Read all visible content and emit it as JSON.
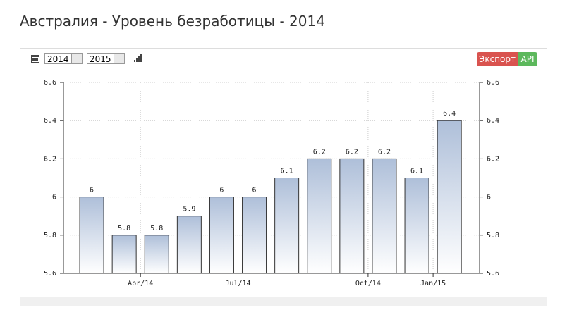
{
  "page_title": "Австралия - Уровень безработицы - 2014",
  "toolbar": {
    "from_year": "2014",
    "to_year": "2015",
    "export_button": "Экспорт",
    "api_button": "API"
  },
  "chart_data": {
    "type": "bar",
    "categories": [
      null,
      null,
      "Apr/14",
      null,
      null,
      "Jul/14",
      null,
      null,
      null,
      "Oct/14",
      null,
      "Jan/15"
    ],
    "values": [
      6,
      5.8,
      5.8,
      5.9,
      6,
      6,
      6.1,
      6.2,
      6.2,
      6.2,
      6.1,
      6.4
    ],
    "color": "#aebfd9",
    "ylim": [
      5.6,
      6.6
    ],
    "yticks": [
      5.6,
      5.8,
      6,
      6.2,
      6.4,
      6.6
    ],
    "grid": true
  }
}
